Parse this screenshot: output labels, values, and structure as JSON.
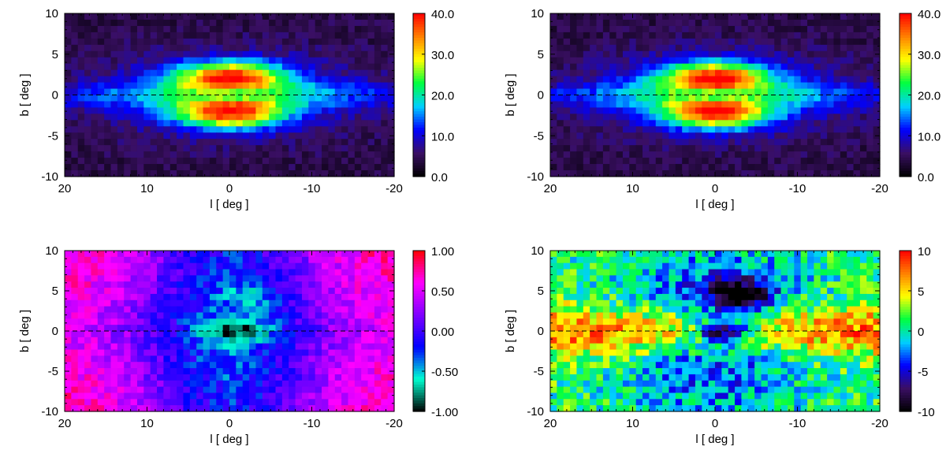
{
  "chart_data": [
    {
      "type": "heatmap",
      "xlabel": "l [ deg ]",
      "ylabel": "b [ deg ]",
      "xlim": [
        20,
        -20
      ],
      "ylim": [
        -10,
        10
      ],
      "xticks": [
        20,
        10,
        0,
        -10,
        -20
      ],
      "yticks": [
        10,
        5,
        0,
        -5,
        -10
      ],
      "zero_line": "dashed",
      "colorbar": {
        "ticks": [
          "40.0",
          "30.0",
          "20.0",
          "10.0",
          "0.0"
        ],
        "range": [
          0,
          40
        ],
        "palette": [
          "#000000",
          "#3a0f64",
          "#0000ff",
          "#00d0ff",
          "#00ff40",
          "#ffff00",
          "#ff8000",
          "#ff0000"
        ]
      },
      "pattern": "peanut",
      "contours": [
        10,
        20,
        30
      ]
    },
    {
      "type": "heatmap",
      "xlabel": "l [ deg ]",
      "ylabel": "b [ deg ]",
      "xlim": [
        20,
        -20
      ],
      "ylim": [
        -10,
        10
      ],
      "xticks": [
        20,
        10,
        0,
        -10,
        -20
      ],
      "yticks": [
        10,
        5,
        0,
        -5,
        -10
      ],
      "zero_line": "dashed",
      "colorbar": {
        "ticks": [
          "40.0",
          "30.0",
          "20.0",
          "10.0",
          "0.0"
        ],
        "range": [
          0,
          40
        ],
        "palette": [
          "#000000",
          "#3a0f64",
          "#0000ff",
          "#00d0ff",
          "#00ff40",
          "#ffff00",
          "#ff8000",
          "#ff0000"
        ]
      },
      "pattern": "peanut",
      "contours": [
        10,
        20,
        30
      ]
    },
    {
      "type": "heatmap",
      "xlabel": "l [ deg ]",
      "ylabel": "b [ deg ]",
      "xlim": [
        20,
        -20
      ],
      "ylim": [
        -10,
        10
      ],
      "xticks": [
        20,
        10,
        0,
        -10,
        -20
      ],
      "yticks": [
        10,
        5,
        0,
        -5,
        -10
      ],
      "zero_line": "dashed",
      "colorbar": {
        "ticks": [
          "1.00",
          "0.50",
          "0.00",
          "-0.50",
          "-1.00"
        ],
        "range": [
          -1,
          1
        ],
        "palette": [
          "#000000",
          "#00ffd0",
          "#0000ff",
          "#8000ff",
          "#ff00ff",
          "#ff0000"
        ]
      },
      "pattern": "asymmetry",
      "contours": [
        -0.5,
        0.0,
        0.5
      ]
    },
    {
      "type": "heatmap",
      "xlabel": "l [ deg ]",
      "ylabel": "b [ deg ]",
      "xlim": [
        20,
        -20
      ],
      "ylim": [
        -10,
        10
      ],
      "xticks": [
        20,
        10,
        0,
        -10,
        -20
      ],
      "yticks": [
        10,
        5,
        0,
        -5,
        -10
      ],
      "zero_line": "dashed",
      "colorbar": {
        "ticks": [
          "10",
          "5",
          "0",
          "-5",
          "-10"
        ],
        "range": [
          -10,
          10
        ],
        "palette": [
          "#000000",
          "#3a0f64",
          "#0000ff",
          "#00d0ff",
          "#00ff40",
          "#ffff00",
          "#ff8000",
          "#ff0000"
        ]
      },
      "pattern": "residual",
      "contours": [
        -5,
        0,
        5
      ]
    }
  ]
}
